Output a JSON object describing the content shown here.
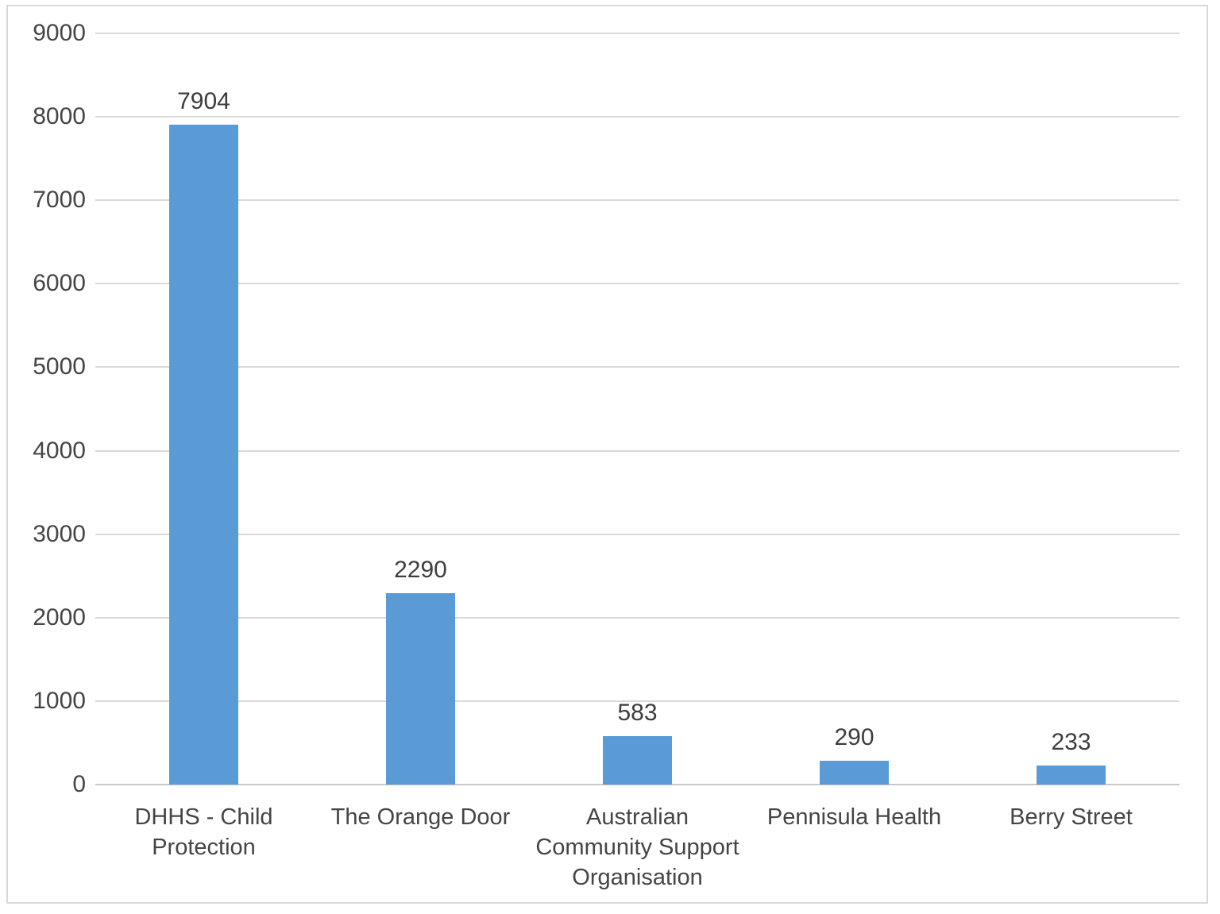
{
  "chart_data": {
    "type": "bar",
    "title": "",
    "xlabel": "",
    "ylabel": "",
    "categories": [
      "DHHS - Child Protection",
      "The Orange Door",
      "Australian Community Support Organisation",
      "Pennisula Health",
      "Berry Street"
    ],
    "values": [
      7904,
      2290,
      583,
      290,
      233
    ],
    "value_labels": [
      "7904",
      "2290",
      "583",
      "290",
      "233"
    ],
    "y_tick_labels": [
      "9000",
      "8000",
      "7000",
      "6000",
      "5000",
      "4000",
      "3000",
      "2000",
      "1000",
      "0"
    ],
    "ylim": [
      0,
      9000
    ],
    "ytick_step": 1000,
    "grid": true,
    "legend": false,
    "data_labels_shown": true,
    "colors": {
      "bar_fill": "#5b9bd5",
      "gridline": "#d9d9d9",
      "axis_line": "#c9c9c9",
      "text": "#454545",
      "chart_border": "#d9d9d9",
      "background": "#ffffff"
    }
  }
}
